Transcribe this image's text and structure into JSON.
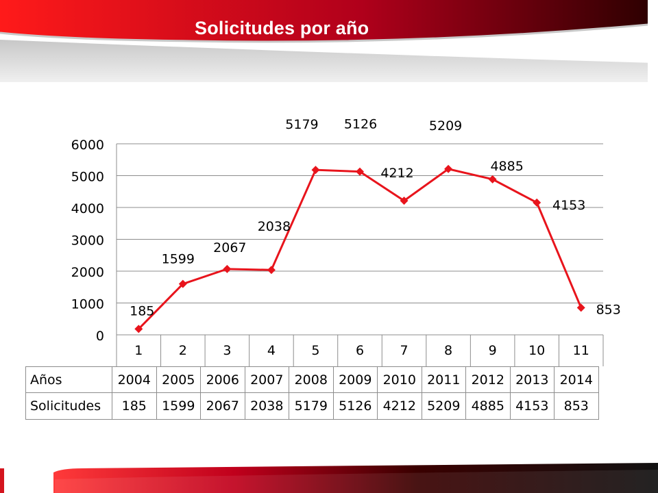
{
  "slide": {
    "title": "Solicitudes por año",
    "accent_color": "#e8141c",
    "banner_colors": [
      "#ff1a1a",
      "#b0001b",
      "#2a0000"
    ]
  },
  "chart_data": {
    "type": "line",
    "title": "",
    "xlabel": "",
    "ylabel": "",
    "categories": [
      "1",
      "2",
      "3",
      "4",
      "5",
      "6",
      "7",
      "8",
      "9",
      "10",
      "11"
    ],
    "series": [
      {
        "values": [
          185,
          1599,
          2067,
          2038,
          5179,
          5126,
          4212,
          5209,
          4885,
          4153,
          853
        ]
      }
    ],
    "data_labels": [
      "185",
      "1599",
      "2067",
      "2038",
      "5179",
      "5126",
      "4212",
      "5209",
      "4885",
      "4153",
      "853"
    ],
    "ylim": [
      0,
      6000
    ],
    "yticks": [
      0,
      1000,
      2000,
      3000,
      4000,
      5000,
      6000
    ],
    "grid": true,
    "line_color": "#e8141c",
    "marker": "diamond"
  },
  "table": {
    "rows": [
      {
        "header": "Años",
        "cells": [
          "2004",
          "2005",
          "2006",
          "2007",
          "2008",
          "2009",
          "2010",
          "2011",
          "2012",
          "2013",
          "2014"
        ]
      },
      {
        "header": "Solicitudes",
        "cells": [
          "185",
          "1599",
          "2067",
          "2038",
          "5179",
          "5126",
          "4212",
          "5209",
          "4885",
          "4153",
          "853"
        ]
      }
    ]
  }
}
